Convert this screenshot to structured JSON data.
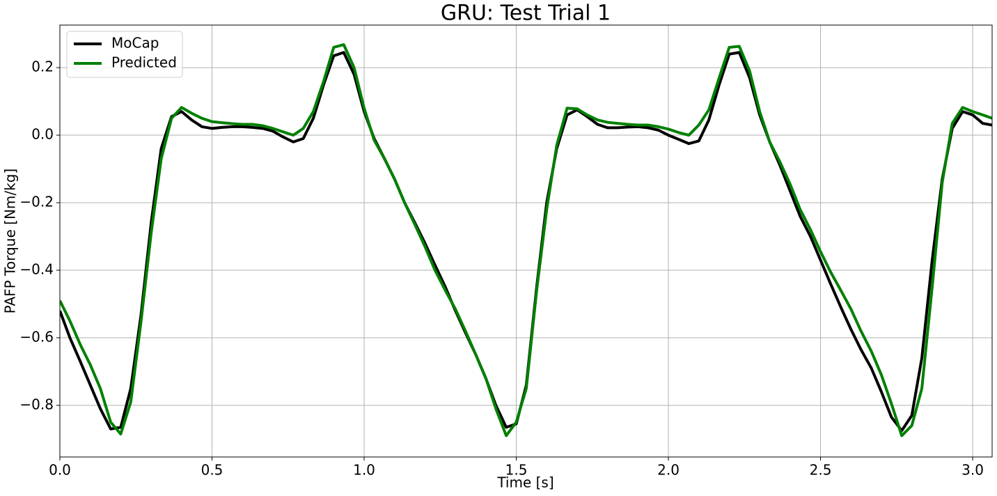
{
  "chart_data": {
    "type": "line",
    "title": "GRU: Test Trial 1",
    "xlabel": "Time [s]",
    "ylabel": "PAFP Torque [Nm/kg]",
    "x": [
      0,
      0.033,
      0.067,
      0.1,
      0.133,
      0.167,
      0.2,
      0.233,
      0.267,
      0.3,
      0.333,
      0.367,
      0.4,
      0.433,
      0.467,
      0.5,
      0.533,
      0.567,
      0.6,
      0.633,
      0.667,
      0.7,
      0.733,
      0.767,
      0.8,
      0.833,
      0.867,
      0.9,
      0.933,
      0.967,
      1.0,
      1.033,
      1.067,
      1.1,
      1.133,
      1.167,
      1.2,
      1.233,
      1.267,
      1.3,
      1.333,
      1.367,
      1.4,
      1.433,
      1.467,
      1.5,
      1.533,
      1.567,
      1.6,
      1.633,
      1.667,
      1.7,
      1.733,
      1.767,
      1.8,
      1.833,
      1.867,
      1.9,
      1.933,
      1.967,
      2.0,
      2.033,
      2.067,
      2.1,
      2.133,
      2.167,
      2.2,
      2.233,
      2.267,
      2.3,
      2.333,
      2.367,
      2.4,
      2.433,
      2.467,
      2.5,
      2.533,
      2.567,
      2.6,
      2.633,
      2.667,
      2.7,
      2.733,
      2.767,
      2.8,
      2.833,
      2.867,
      2.9,
      2.933,
      2.967,
      3.0,
      3.033,
      3.064
    ],
    "series": [
      {
        "name": "MoCap",
        "color": "#000000",
        "values": [
          -0.52,
          -0.6,
          -0.67,
          -0.74,
          -0.81,
          -0.87,
          -0.865,
          -0.75,
          -0.53,
          -0.26,
          -0.04,
          0.055,
          0.07,
          0.045,
          0.025,
          0.02,
          0.023,
          0.025,
          0.025,
          0.023,
          0.02,
          0.012,
          -0.005,
          -0.02,
          -0.01,
          0.05,
          0.15,
          0.235,
          0.245,
          0.18,
          0.07,
          -0.01,
          -0.07,
          -0.13,
          -0.2,
          -0.26,
          -0.32,
          -0.385,
          -0.45,
          -0.52,
          -0.585,
          -0.65,
          -0.72,
          -0.8,
          -0.865,
          -0.855,
          -0.74,
          -0.45,
          -0.2,
          -0.04,
          0.06,
          0.075,
          0.055,
          0.032,
          0.022,
          0.022,
          0.024,
          0.025,
          0.022,
          0.015,
          0.0,
          -0.012,
          -0.025,
          -0.017,
          0.045,
          0.15,
          0.24,
          0.245,
          0.17,
          0.06,
          -0.02,
          -0.09,
          -0.165,
          -0.24,
          -0.3,
          -0.37,
          -0.44,
          -0.51,
          -0.575,
          -0.635,
          -0.69,
          -0.76,
          -0.835,
          -0.875,
          -0.83,
          -0.66,
          -0.37,
          -0.13,
          0.02,
          0.07,
          0.06,
          0.035,
          0.03
        ]
      },
      {
        "name": "Predicted",
        "color": "#008000",
        "values": [
          -0.49,
          -0.55,
          -0.62,
          -0.68,
          -0.75,
          -0.85,
          -0.885,
          -0.79,
          -0.55,
          -0.29,
          -0.07,
          0.05,
          0.082,
          0.065,
          0.05,
          0.04,
          0.037,
          0.034,
          0.032,
          0.032,
          0.028,
          0.02,
          0.01,
          0.0,
          0.02,
          0.07,
          0.16,
          0.26,
          0.268,
          0.2,
          0.08,
          -0.015,
          -0.07,
          -0.13,
          -0.2,
          -0.265,
          -0.33,
          -0.4,
          -0.46,
          -0.515,
          -0.58,
          -0.65,
          -0.72,
          -0.81,
          -0.89,
          -0.85,
          -0.75,
          -0.46,
          -0.22,
          -0.03,
          0.08,
          0.078,
          0.06,
          0.045,
          0.038,
          0.035,
          0.032,
          0.03,
          0.03,
          0.025,
          0.018,
          0.008,
          0.0,
          0.03,
          0.075,
          0.17,
          0.26,
          0.263,
          0.19,
          0.07,
          -0.02,
          -0.08,
          -0.145,
          -0.22,
          -0.28,
          -0.345,
          -0.405,
          -0.46,
          -0.515,
          -0.58,
          -0.64,
          -0.71,
          -0.795,
          -0.89,
          -0.86,
          -0.75,
          -0.45,
          -0.14,
          0.035,
          0.082,
          0.07,
          0.06,
          0.05
        ]
      }
    ],
    "xlim": [
      0,
      3.064
    ],
    "ylim": [
      -0.953,
      0.326
    ],
    "xticks": [
      {
        "value": 0,
        "label": "0.0"
      },
      0.5,
      {
        "value": 1,
        "label": "1.0"
      },
      1.5,
      {
        "value": 2,
        "label": "2.0"
      },
      2.5,
      {
        "value": 3,
        "label": "3.0"
      }
    ],
    "yticks": [
      {
        "value": -0.8,
        "label": "−0.8"
      },
      {
        "value": -0.6,
        "label": "−0.6"
      },
      {
        "value": -0.4,
        "label": "−0.4"
      },
      {
        "value": -0.2,
        "label": "−0.2"
      },
      {
        "value": 0,
        "label": "0.0"
      },
      0.2
    ],
    "grid": true,
    "legend": "upper left"
  }
}
